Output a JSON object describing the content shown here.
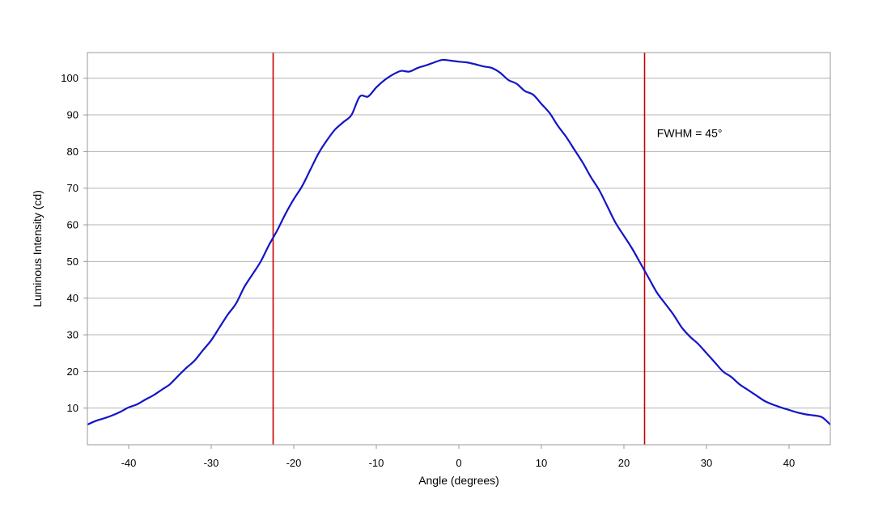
{
  "chart_data": {
    "type": "line",
    "xlabel": "Angle (degrees)",
    "ylabel": "Luminous Intensity (cd)",
    "xlim": [
      -45,
      45
    ],
    "ylim": [
      0,
      107
    ],
    "xticks": [
      -40,
      -30,
      -20,
      -10,
      0,
      10,
      20,
      30,
      40
    ],
    "xtick_labels": [
      "-40",
      "-30",
      "-20",
      "-10",
      "0",
      "10",
      "20",
      "30",
      "40"
    ],
    "yticks": [
      10,
      20,
      30,
      40,
      50,
      60,
      70,
      80,
      90,
      100
    ],
    "ytick_labels": [
      "10",
      "20",
      "30",
      "40",
      "50",
      "60",
      "70",
      "80",
      "90",
      "100"
    ],
    "grid": {
      "horizontal": true,
      "vertical": false
    },
    "series": [
      {
        "color": "#1414c8",
        "x": [
          -45,
          -44,
          -43,
          -42,
          -41,
          -40,
          -39,
          -38,
          -37,
          -36,
          -35,
          -34,
          -33,
          -32,
          -31,
          -30,
          -29,
          -28,
          -27,
          -26,
          -25,
          -24,
          -23,
          -22,
          -21,
          -20,
          -19,
          -18,
          -17,
          -16,
          -15,
          -14,
          -13,
          -12,
          -11,
          -10,
          -9,
          -8,
          -7,
          -6,
          -5,
          -4,
          -3,
          -2,
          -1,
          0,
          1,
          2,
          3,
          4,
          5,
          6,
          7,
          8,
          9,
          10,
          11,
          12,
          13,
          14,
          15,
          16,
          17,
          18,
          19,
          20,
          21,
          22,
          23,
          24,
          25,
          26,
          27,
          28,
          29,
          30,
          31,
          32,
          33,
          34,
          35,
          36,
          37,
          38,
          39,
          40,
          41,
          42,
          43,
          44,
          45
        ],
        "y": [
          5.5,
          6.5,
          7.2,
          8,
          9,
          10.2,
          11,
          12.3,
          13.5,
          15,
          16.5,
          18.8,
          21,
          23,
          25.8,
          28.5,
          32,
          35.5,
          38.5,
          43,
          46.5,
          50,
          54.5,
          58.5,
          63,
          67,
          70.5,
          75,
          79.5,
          83,
          86,
          88,
          90,
          95,
          95,
          97.5,
          99.5,
          101,
          102,
          101.8,
          102.8,
          103.5,
          104.3,
          105,
          104.8,
          104.5,
          104.3,
          103.8,
          103.2,
          102.8,
          101.5,
          99.5,
          98.5,
          96.5,
          95.5,
          93,
          90.5,
          87,
          84,
          80.5,
          77,
          73,
          69.5,
          65,
          60.5,
          57,
          53.5,
          49.5,
          45.5,
          41.5,
          38.5,
          35.5,
          32,
          29.5,
          27.5,
          25,
          22.5,
          20,
          18.5,
          16.5,
          15,
          13.5,
          12,
          11,
          10.2,
          9.5,
          8.8,
          8.3,
          8,
          7.5,
          5.5
        ]
      }
    ],
    "vlines": [
      {
        "x": -22.5,
        "color": "#cc0000"
      },
      {
        "x": 22.5,
        "color": "#cc0000"
      }
    ],
    "annotations": [
      {
        "text": "FWHM = 45°",
        "x": 24,
        "y": 84
      }
    ]
  }
}
